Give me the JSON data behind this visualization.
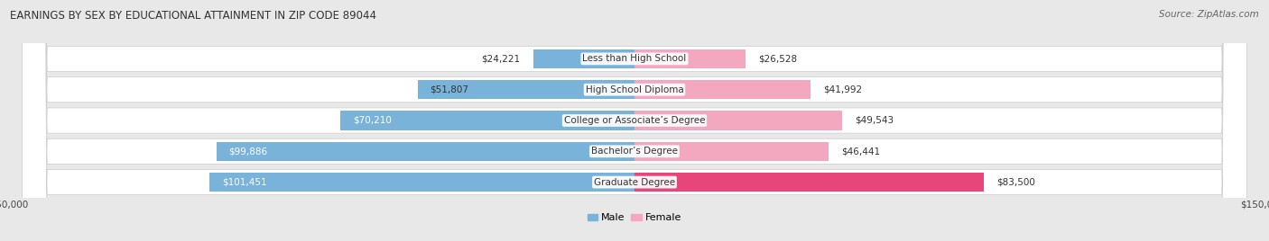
{
  "title": "EARNINGS BY SEX BY EDUCATIONAL ATTAINMENT IN ZIP CODE 89044",
  "source": "Source: ZipAtlas.com",
  "categories": [
    "Less than High School",
    "High School Diploma",
    "College or Associate’s Degree",
    "Bachelor’s Degree",
    "Graduate Degree"
  ],
  "male_values": [
    24221,
    51807,
    70210,
    99886,
    101451
  ],
  "female_values": [
    26528,
    41992,
    49543,
    46441,
    83500
  ],
  "male_labels": [
    "$24,221",
    "$51,807",
    "$70,210",
    "$99,886",
    "$101,451"
  ],
  "female_labels": [
    "$26,528",
    "$41,992",
    "$49,543",
    "$46,441",
    "$83,500"
  ],
  "male_color": "#7ab3d9",
  "female_colors": [
    "#f4a8c0",
    "#f4a8c0",
    "#f4a8c0",
    "#f4a8c0",
    "#e8457a"
  ],
  "max_value": 150000,
  "bg_color": "#e8e8e8",
  "row_color": "#f2f2f2",
  "title_fontsize": 8.5,
  "label_fontsize": 7.5,
  "tick_fontsize": 7.5,
  "source_fontsize": 7.5,
  "legend_fontsize": 8
}
